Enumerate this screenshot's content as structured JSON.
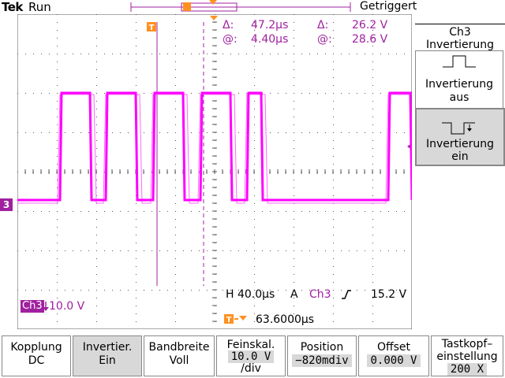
{
  "header": {
    "brand": "Tek",
    "run_state": "Run",
    "trigger_state": "Getriggert"
  },
  "cursor_readout": {
    "delta_symbol": "Δ:",
    "at_symbol": "@:",
    "delta_time": "47.2µs",
    "at_time": "4.40µs",
    "delta_volt": "26.2 V",
    "at_volt": "28.6 V"
  },
  "timebase": {
    "horizontal": "H 40.0µs",
    "mode": "A",
    "trigger_source": "Ch3",
    "trigger_level": "15.2 V",
    "trigger_position": "63.6000µs"
  },
  "channel": {
    "marker": "3",
    "scale_label": "Ch3",
    "scale_value": "10.0 V"
  },
  "side_menu": {
    "title_line1": "Ch3",
    "title_line2": "Invertierung",
    "off_line1": "Invertierung",
    "off_line2": "aus",
    "on_line1": "Invertierung",
    "on_line2": "ein"
  },
  "bottom_menu": [
    {
      "label": "Kopplung",
      "value": "DC"
    },
    {
      "label": "Invertier.",
      "value": "Ein"
    },
    {
      "label": "Bandbreite",
      "value": "Voll"
    },
    {
      "label": "Feinskal.",
      "value": "10.0 V",
      "value2": "/div"
    },
    {
      "label": "Position",
      "value": "−820mdiv"
    },
    {
      "label": "Offset",
      "value": "0.000 V"
    },
    {
      "label": "Tastkopf–",
      "label2": "einstellung",
      "value": "200 X"
    }
  ],
  "colors": {
    "trace": "#ff00ff",
    "channel": "#a020a0",
    "selected": "#d8d8d8"
  }
}
